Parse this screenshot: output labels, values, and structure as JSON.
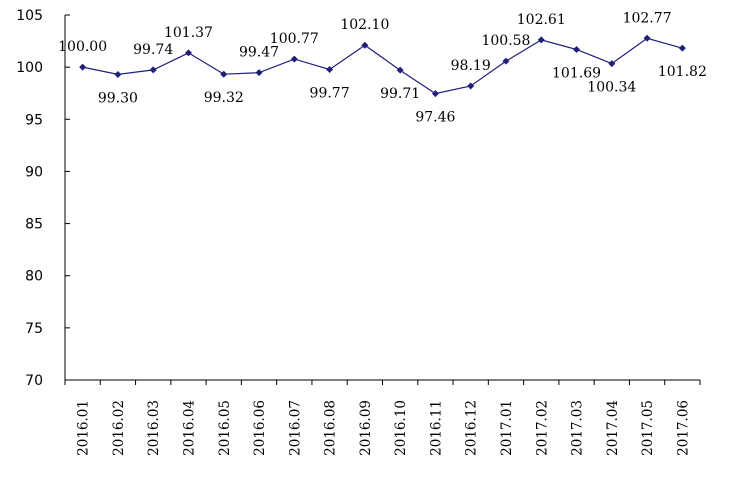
{
  "chart_data": {
    "type": "line",
    "title": "",
    "xlabel": "",
    "ylabel": "",
    "categories": [
      "2016.01",
      "2016.02",
      "2016.03",
      "2016.04",
      "2016.05",
      "2016.06",
      "2016.07",
      "2016.08",
      "2016.09",
      "2016.10",
      "2016.11",
      "2016.12",
      "2017.01",
      "2017.02",
      "2017.03",
      "2017.04",
      "2017.05",
      "2017.06"
    ],
    "series": [
      {
        "values": [
          100.0,
          99.3,
          99.74,
          101.37,
          99.32,
          99.47,
          100.77,
          99.77,
          102.1,
          99.71,
          97.46,
          98.19,
          100.58,
          102.61,
          101.69,
          100.34,
          102.77,
          101.82
        ],
        "labels": [
          "100.00",
          "99.30",
          "99.74",
          "101.37",
          "99.32",
          "99.47",
          "100.77",
          "99.77",
          "102.10",
          "99.71",
          "97.46",
          "98.19",
          "100.58",
          "102.61",
          "101.69",
          "100.34",
          "102.77",
          "101.82"
        ],
        "color": "#1f1f7a"
      }
    ],
    "ylim": [
      70,
      105
    ],
    "yticks": [
      "70",
      "75",
      "80",
      "85",
      "90",
      "95",
      "100",
      "105"
    ],
    "grid": false,
    "legend": "none"
  }
}
